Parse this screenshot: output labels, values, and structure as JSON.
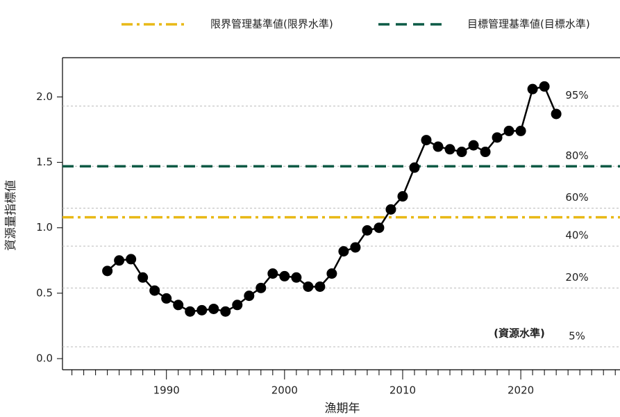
{
  "chart_data": {
    "type": "line",
    "x_label": "漁期年",
    "y_label": "資源量指標値",
    "x": [
      1985,
      1986,
      1987,
      1988,
      1989,
      1990,
      1991,
      1992,
      1993,
      1994,
      1995,
      1996,
      1997,
      1998,
      1999,
      2000,
      2001,
      2002,
      2003,
      2004,
      2005,
      2006,
      2007,
      2008,
      2009,
      2010,
      2011,
      2012,
      2013,
      2014,
      2015,
      2016,
      2017,
      2018,
      2019,
      2020,
      2021,
      2022,
      2023
    ],
    "values": [
      0.67,
      0.75,
      0.76,
      0.62,
      0.52,
      0.46,
      0.41,
      0.36,
      0.37,
      0.38,
      0.36,
      0.41,
      0.48,
      0.54,
      0.65,
      0.63,
      0.62,
      0.55,
      0.55,
      0.65,
      0.82,
      0.85,
      0.98,
      1.0,
      1.14,
      1.24,
      1.46,
      1.67,
      1.62,
      1.6,
      1.58,
      1.63,
      1.58,
      1.69,
      1.74,
      1.74,
      2.06,
      2.08,
      1.87
    ],
    "color": "#000000",
    "xlim": [
      1981.2,
      2028.4
    ],
    "ylim": [
      -0.085,
      2.3
    ],
    "xticks": [
      1990,
      2000,
      2010,
      2020
    ],
    "xminor": [
      1982,
      1983,
      1984,
      1985,
      1986,
      1987,
      1988,
      1989,
      1991,
      1992,
      1993,
      1994,
      1995,
      1996,
      1997,
      1998,
      1999,
      2001,
      2002,
      2003,
      2004,
      2005,
      2006,
      2007,
      2008,
      2009,
      2011,
      2012,
      2013,
      2014,
      2015,
      2016,
      2017,
      2018,
      2019,
      2021,
      2022,
      2023,
      2024,
      2025,
      2026,
      2027,
      2028
    ],
    "yticks": [
      {
        "value": 0,
        "label": "0.0"
      },
      0.5,
      {
        "value": 1,
        "label": "1.0"
      },
      1.5,
      {
        "value": 2,
        "label": "2.0"
      }
    ],
    "reference_lines": [
      {
        "name": "限界管理基準値(限界水準)",
        "value": 1.08,
        "color": "#e8b816",
        "style": "dashdot"
      },
      {
        "name": "目標管理基準値(目標水準)",
        "value": 1.47,
        "color": "#0b5a45",
        "style": "dashed"
      }
    ],
    "percentile_lines": [
      {
        "label": "95%",
        "value": 1.93
      },
      {
        "label": "80%",
        "value": 1.47
      },
      {
        "label": "60%",
        "value": 1.15
      },
      {
        "label": "40%",
        "value": 0.86
      },
      {
        "label": "20%",
        "value": 0.54
      },
      {
        "label": "5%",
        "value": 0.09
      }
    ],
    "annotation": "(資源水準)"
  }
}
